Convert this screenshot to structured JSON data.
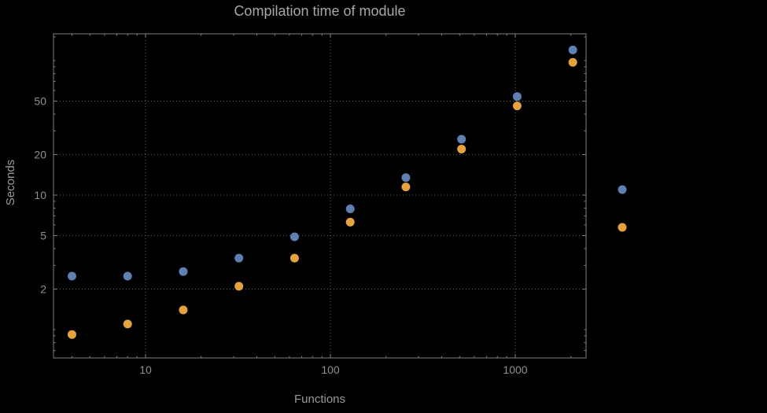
{
  "chart_data": {
    "type": "scatter",
    "title": "Compilation time of module",
    "xlabel": "Functions",
    "ylabel": "Seconds",
    "x_scale": "log",
    "y_scale": "log",
    "x_ticks": [
      10,
      100,
      1000
    ],
    "y_ticks": [
      2,
      5,
      10,
      20,
      50
    ],
    "x_range": [
      3.2,
      2400
    ],
    "y_range": [
      0.62,
      158
    ],
    "grid": "dotted",
    "legend": {
      "labels_visible": false
    },
    "x": [
      4,
      8,
      16,
      32,
      64,
      128,
      256,
      512,
      1024,
      2048
    ],
    "series": [
      {
        "name": "blue",
        "color": "#5e81b4",
        "values": [
          2.5,
          2.5,
          2.7,
          3.4,
          4.9,
          7.9,
          13.5,
          26,
          54,
          120
        ]
      },
      {
        "name": "orange",
        "color": "#e7a33b",
        "values": [
          0.92,
          1.1,
          1.4,
          2.1,
          3.4,
          6.3,
          11.5,
          22,
          46,
          97
        ]
      }
    ],
    "colors": {
      "background": "#000000",
      "frame": "#808080",
      "grid": "#5f5f5f",
      "tick_text": "#8f8f8f",
      "title_text": "#a8a8a8",
      "axis_label_text": "#9a9a9a"
    }
  }
}
